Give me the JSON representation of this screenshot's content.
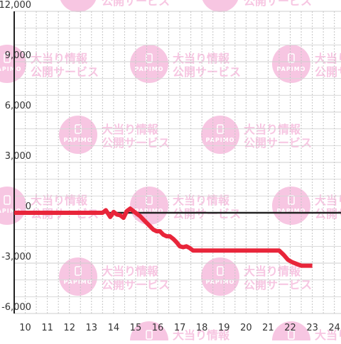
{
  "watermark": {
    "logo_text": "PAPIMO",
    "line1": "大当り情報",
    "line2": "公開サービス",
    "color": "#f7c6e2"
  },
  "chart_data": {
    "type": "line",
    "title": "",
    "xlabel": "",
    "ylabel": "",
    "xlim": [
      9.5,
      24.3
    ],
    "ylim": [
      -6000,
      12000
    ],
    "x_ticks": [
      10,
      11,
      12,
      13,
      14,
      15,
      16,
      17,
      18,
      19,
      20,
      21,
      22,
      23,
      24
    ],
    "y_ticks": [
      -6000,
      -3000,
      0,
      3000,
      6000,
      9000,
      12000
    ],
    "y_tick_labels": [
      "-6,000",
      "-3,000",
      "0",
      "3,000",
      "6,000",
      "9,000",
      "12,000"
    ],
    "grid": true,
    "series": [
      {
        "color": "#e8253a",
        "x": [
          9.5,
          10,
          11,
          12,
          13,
          13.5,
          13.65,
          13.85,
          14.0,
          14.15,
          14.3,
          14.45,
          14.6,
          14.75,
          14.9,
          15.05,
          15.2,
          15.35,
          15.5,
          15.65,
          15.8,
          15.95,
          16.1,
          16.25,
          16.4,
          16.55,
          16.7,
          16.85,
          17.0,
          17.15,
          17.3,
          17.45,
          17.6,
          17.8,
          18,
          19,
          20,
          21,
          21.5,
          21.7,
          21.9,
          22.1,
          22.3,
          22.5,
          22.7,
          22.9,
          23.0
        ],
        "y": [
          0,
          0,
          0,
          0,
          0,
          0,
          150,
          -250,
          50,
          -100,
          -150,
          -300,
          100,
          250,
          100,
          -50,
          -200,
          -400,
          -600,
          -800,
          -1000,
          -1100,
          -1100,
          -1300,
          -1400,
          -1400,
          -1550,
          -1750,
          -2000,
          -2050,
          -2000,
          -2100,
          -2250,
          -2250,
          -2250,
          -2250,
          -2250,
          -2250,
          -2250,
          -2500,
          -2800,
          -2950,
          -3050,
          -3150,
          -3150,
          -3150,
          -3150
        ]
      }
    ]
  }
}
